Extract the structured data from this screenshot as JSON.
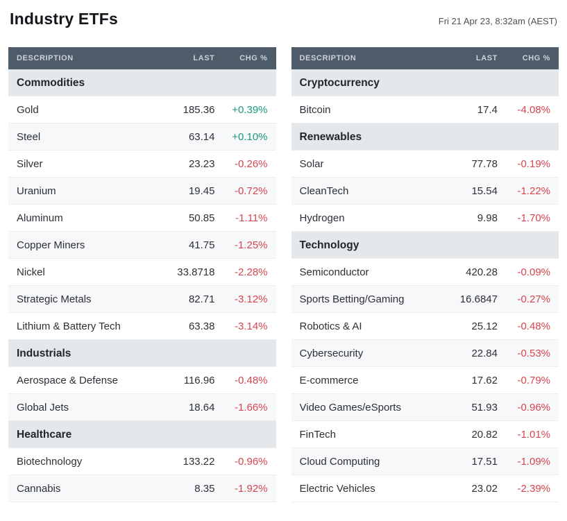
{
  "page": {
    "title": "Industry ETFs",
    "timestamp": "Fri 21 Apr 23, 8:32am (AEST)"
  },
  "columns": {
    "description": "DESCRIPTION",
    "last": "LAST",
    "chg": "CHG %"
  },
  "colors": {
    "positive": "#17997f",
    "negative": "#d6454f",
    "header_bg": "#4e5b68",
    "section_bg": "#e4e8eb"
  },
  "tables": [
    {
      "id": "left",
      "sections": [
        {
          "name": "Commodities",
          "rows": [
            {
              "description": "Gold",
              "last": "185.36",
              "chg": "+0.39%",
              "dir": "up"
            },
            {
              "description": "Steel",
              "last": "63.14",
              "chg": "+0.10%",
              "dir": "up"
            },
            {
              "description": "Silver",
              "last": "23.23",
              "chg": "-0.26%",
              "dir": "down"
            },
            {
              "description": "Uranium",
              "last": "19.45",
              "chg": "-0.72%",
              "dir": "down"
            },
            {
              "description": "Aluminum",
              "last": "50.85",
              "chg": "-1.11%",
              "dir": "down"
            },
            {
              "description": "Copper Miners",
              "last": "41.75",
              "chg": "-1.25%",
              "dir": "down"
            },
            {
              "description": "Nickel",
              "last": "33.8718",
              "chg": "-2.28%",
              "dir": "down"
            },
            {
              "description": "Strategic Metals",
              "last": "82.71",
              "chg": "-3.12%",
              "dir": "down"
            },
            {
              "description": "Lithium & Battery Tech",
              "last": "63.38",
              "chg": "-3.14%",
              "dir": "down"
            }
          ]
        },
        {
          "name": "Industrials",
          "rows": [
            {
              "description": "Aerospace & Defense",
              "last": "116.96",
              "chg": "-0.48%",
              "dir": "down"
            },
            {
              "description": "Global Jets",
              "last": "18.64",
              "chg": "-1.66%",
              "dir": "down"
            }
          ]
        },
        {
          "name": "Healthcare",
          "rows": [
            {
              "description": "Biotechnology",
              "last": "133.22",
              "chg": "-0.96%",
              "dir": "down"
            },
            {
              "description": "Cannabis",
              "last": "8.35",
              "chg": "-1.92%",
              "dir": "down"
            }
          ]
        }
      ]
    },
    {
      "id": "right",
      "sections": [
        {
          "name": "Cryptocurrency",
          "rows": [
            {
              "description": "Bitcoin",
              "last": "17.4",
              "chg": "-4.08%",
              "dir": "down"
            }
          ]
        },
        {
          "name": "Renewables",
          "rows": [
            {
              "description": "Solar",
              "last": "77.78",
              "chg": "-0.19%",
              "dir": "down"
            },
            {
              "description": "CleanTech",
              "last": "15.54",
              "chg": "-1.22%",
              "dir": "down"
            },
            {
              "description": "Hydrogen",
              "last": "9.98",
              "chg": "-1.70%",
              "dir": "down"
            }
          ]
        },
        {
          "name": "Technology",
          "rows": [
            {
              "description": "Semiconductor",
              "last": "420.28",
              "chg": "-0.09%",
              "dir": "down"
            },
            {
              "description": "Sports Betting/Gaming",
              "last": "16.6847",
              "chg": "-0.27%",
              "dir": "down"
            },
            {
              "description": "Robotics & AI",
              "last": "25.12",
              "chg": "-0.48%",
              "dir": "down"
            },
            {
              "description": "Cybersecurity",
              "last": "22.84",
              "chg": "-0.53%",
              "dir": "down"
            },
            {
              "description": "E-commerce",
              "last": "17.62",
              "chg": "-0.79%",
              "dir": "down"
            },
            {
              "description": "Video Games/eSports",
              "last": "51.93",
              "chg": "-0.96%",
              "dir": "down"
            },
            {
              "description": "FinTech",
              "last": "20.82",
              "chg": "-1.01%",
              "dir": "down"
            },
            {
              "description": "Cloud Computing",
              "last": "17.51",
              "chg": "-1.09%",
              "dir": "down"
            },
            {
              "description": "Electric Vehicles",
              "last": "23.02",
              "chg": "-2.39%",
              "dir": "down"
            }
          ]
        }
      ]
    }
  ]
}
